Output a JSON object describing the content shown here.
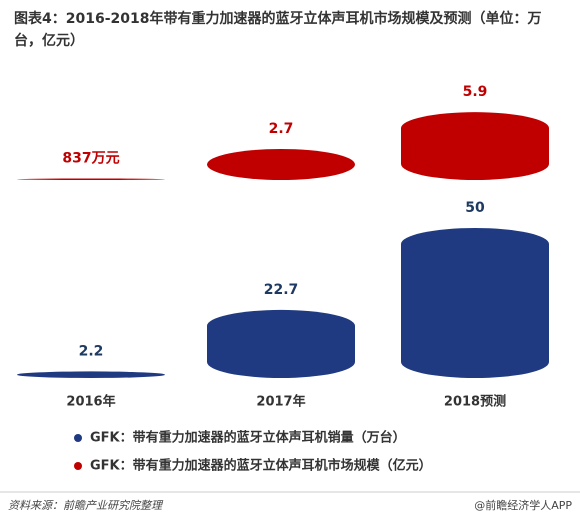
{
  "chart_data": {
    "type": "cylinder-bar",
    "title": "图表4：2016-2018年带有重力加速器的蓝牙立体声耳机市场规模及预测（单位：万台，亿元）",
    "categories": [
      "2016年",
      "2017年",
      "2018预测"
    ],
    "series": [
      {
        "name": "GFK：带有重力加速器的蓝牙立体声耳机销量（万台）",
        "color": "#1f3a80",
        "values": [
          2.2,
          22.7,
          50
        ]
      },
      {
        "name": "GFK：带有重力加速器的蓝牙立体声耳机市场规模（亿元）",
        "color": "#c00000",
        "values": [
          0.0837,
          2.7,
          5.9
        ],
        "value_labels": [
          "837万元",
          "2.7",
          "5.9"
        ]
      }
    ],
    "source": "资料来源：前瞻产业研究院整理",
    "credit": "@前瞻经济学人APP"
  }
}
